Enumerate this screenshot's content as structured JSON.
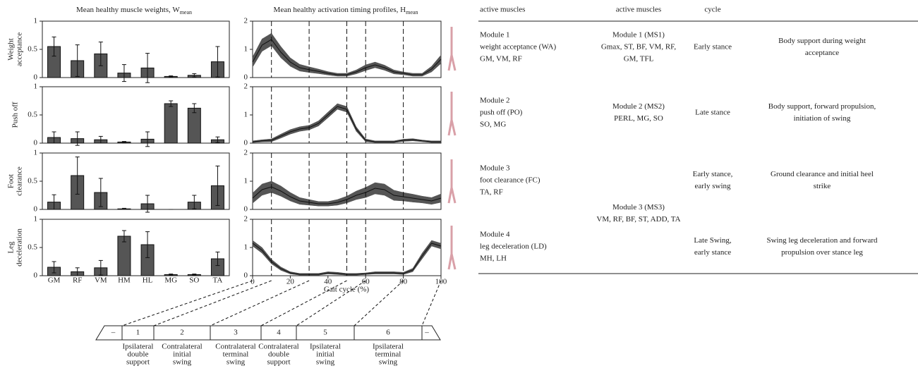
{
  "figure": {
    "weights_title": "Mean healthy muscle weights, W",
    "weights_title_sub": "mean",
    "timing_title": "Mean healthy activation timing profiles, H",
    "timing_title_sub": "mean",
    "timing_xlabel": "Gait cycle (%)"
  },
  "chart_data": [
    {
      "type": "bar",
      "ylabel": [
        "Weight",
        "acceptance"
      ],
      "values": [
        0.55,
        0.3,
        0.42,
        0.08,
        0.17,
        0.02,
        0.04,
        0.28
      ],
      "errors": [
        0.17,
        0.28,
        0.21,
        0.15,
        0.26,
        0.01,
        0.03,
        0.27
      ],
      "color": "#555555",
      "ylim": [
        0,
        1
      ],
      "yticks": [
        0,
        0.5,
        1
      ]
    },
    {
      "type": "bar",
      "ylabel": [
        "Push off"
      ],
      "values": [
        0.1,
        0.08,
        0.06,
        0.02,
        0.07,
        0.7,
        0.62,
        0.06
      ],
      "errors": [
        0.1,
        0.12,
        0.06,
        0.01,
        0.13,
        0.05,
        0.08,
        0.05
      ],
      "color": "#555555",
      "ylim": [
        0,
        1
      ],
      "yticks": [
        0,
        0.5,
        1
      ]
    },
    {
      "type": "bar",
      "ylabel": [
        "Foot",
        "clearance"
      ],
      "values": [
        0.13,
        0.6,
        0.3,
        0.01,
        0.1,
        0,
        0.13,
        0.42
      ],
      "errors": [
        0.13,
        0.33,
        0.25,
        0.01,
        0.15,
        0,
        0.12,
        0.35
      ],
      "color": "#555555",
      "ylim": [
        0,
        1
      ],
      "yticks": [
        0,
        0.5,
        1
      ]
    },
    {
      "type": "bar",
      "ylabel": [
        "Leg",
        "deceleration"
      ],
      "categories": [
        "GM",
        "RF",
        "VM",
        "HM",
        "HL",
        "MG",
        "SO",
        "TA"
      ],
      "values": [
        0.15,
        0.07,
        0.14,
        0.7,
        0.55,
        0.02,
        0.02,
        0.3
      ],
      "errors": [
        0.1,
        0.07,
        0.13,
        0.1,
        0.23,
        0.01,
        0.01,
        0.12
      ],
      "color": "#555555",
      "ylim": [
        0,
        1
      ],
      "yticks": [
        0,
        0.5,
        1
      ]
    },
    {
      "type": "band",
      "x": [
        0,
        5,
        10,
        15,
        20,
        25,
        30,
        35,
        40,
        45,
        50,
        55,
        60,
        65,
        70,
        75,
        80,
        85,
        90,
        95,
        100
      ],
      "values": [
        0.55,
        1.15,
        1.35,
        0.9,
        0.55,
        0.35,
        0.28,
        0.22,
        0.15,
        0.1,
        0.1,
        0.2,
        0.35,
        0.45,
        0.35,
        0.2,
        0.15,
        0.1,
        0.1,
        0.3,
        0.65
      ],
      "errors": [
        0.18,
        0.22,
        0.22,
        0.2,
        0.15,
        0.12,
        0.1,
        0.08,
        0.06,
        0.05,
        0.05,
        0.07,
        0.1,
        0.1,
        0.09,
        0.07,
        0.05,
        0.05,
        0.05,
        0.1,
        0.15
      ],
      "color": "#555555",
      "ylim": [
        0,
        2
      ],
      "yticks": [
        0,
        1,
        2
      ],
      "xlim": [
        0,
        100
      ],
      "vlines": [
        10,
        30,
        50,
        60,
        80
      ]
    },
    {
      "type": "band",
      "x": [
        0,
        5,
        10,
        15,
        20,
        25,
        30,
        35,
        40,
        45,
        50,
        55,
        60,
        65,
        70,
        75,
        80,
        85,
        90,
        95,
        100
      ],
      "values": [
        0.05,
        0.08,
        0.1,
        0.25,
        0.4,
        0.5,
        0.55,
        0.7,
        1.0,
        1.3,
        1.2,
        0.5,
        0.1,
        0.05,
        0.05,
        0.05,
        0.1,
        0.12,
        0.08,
        0.05,
        0.05
      ],
      "errors": [
        0.03,
        0.04,
        0.05,
        0.07,
        0.08,
        0.08,
        0.08,
        0.09,
        0.1,
        0.1,
        0.1,
        0.08,
        0.05,
        0.03,
        0.03,
        0.03,
        0.04,
        0.04,
        0.03,
        0.03,
        0.03
      ],
      "color": "#555555",
      "ylim": [
        0,
        2
      ],
      "yticks": [
        0,
        1,
        2
      ],
      "xlim": [
        0,
        100
      ],
      "vlines": [
        10,
        30,
        50,
        60,
        80
      ]
    },
    {
      "type": "band",
      "x": [
        0,
        5,
        10,
        15,
        20,
        25,
        30,
        35,
        40,
        45,
        50,
        55,
        60,
        65,
        70,
        75,
        80,
        85,
        90,
        95,
        100
      ],
      "values": [
        0.4,
        0.7,
        0.8,
        0.65,
        0.45,
        0.3,
        0.25,
        0.2,
        0.2,
        0.25,
        0.35,
        0.5,
        0.6,
        0.75,
        0.7,
        0.5,
        0.45,
        0.4,
        0.35,
        0.3,
        0.4
      ],
      "errors": [
        0.18,
        0.2,
        0.2,
        0.18,
        0.15,
        0.12,
        0.1,
        0.08,
        0.08,
        0.1,
        0.12,
        0.15,
        0.18,
        0.2,
        0.2,
        0.18,
        0.15,
        0.14,
        0.12,
        0.12,
        0.15
      ],
      "color": "#555555",
      "ylim": [
        0,
        2
      ],
      "yticks": [
        0,
        1,
        2
      ],
      "xlim": [
        0,
        100
      ],
      "vlines": [
        10,
        30,
        50,
        60,
        80
      ]
    },
    {
      "type": "band",
      "x": [
        0,
        5,
        10,
        15,
        20,
        25,
        30,
        35,
        40,
        45,
        50,
        55,
        60,
        65,
        70,
        75,
        80,
        85,
        90,
        95,
        100
      ],
      "values": [
        1.15,
        0.9,
        0.5,
        0.25,
        0.1,
        0.05,
        0.05,
        0.05,
        0.1,
        0.08,
        0.05,
        0.05,
        0.07,
        0.1,
        0.1,
        0.1,
        0.08,
        0.2,
        0.7,
        1.15,
        1.05
      ],
      "errors": [
        0.1,
        0.1,
        0.08,
        0.06,
        0.04,
        0.03,
        0.03,
        0.03,
        0.04,
        0.04,
        0.03,
        0.03,
        0.03,
        0.04,
        0.04,
        0.04,
        0.04,
        0.06,
        0.1,
        0.1,
        0.1
      ],
      "color": "#555555",
      "ylim": [
        0,
        2
      ],
      "yticks": [
        0,
        1,
        2
      ],
      "xlim": [
        0,
        100
      ],
      "xticks": [
        0,
        20,
        40,
        60,
        80,
        100
      ],
      "vlines": [
        10,
        30,
        50,
        60,
        80
      ]
    }
  ],
  "phases": {
    "cells": [
      "–",
      "1",
      "2",
      "3",
      "4",
      "5",
      "6",
      "–"
    ],
    "labels": [
      [
        "Ipsilateral",
        "double",
        "support"
      ],
      [
        "Contralateral",
        "initial",
        "swing"
      ],
      [
        "Contralateral",
        "terminal",
        "swing"
      ],
      [
        "Contralateral",
        "double",
        "support"
      ],
      [
        "Ipsilateral",
        "initial",
        "swing"
      ],
      [
        "Ipsilateral",
        "terminal",
        "swing"
      ]
    ]
  },
  "table": {
    "header": {
      "synergy": [
        "active muscles"
      ],
      "module": [
        "active muscles"
      ],
      "phase": [
        "cycle"
      ]
    },
    "rows": [
      {
        "synergy": [
          "Module 1",
          "weight acceptance (WA)",
          "GM, VM, RF"
        ],
        "module": [
          "Module 1 (MS1)",
          "Gmax, ST, BF, VM, RF,",
          "GM, TFL"
        ],
        "phase": [
          "Early stance"
        ],
        "function": [
          "Body support during weight",
          "acceptance"
        ]
      },
      {
        "synergy": [
          "Module 2",
          "push off (PO)",
          "SO, MG"
        ],
        "module": [
          "Module 2 (MS2)",
          "PERL, MG, SO"
        ],
        "phase": [
          "Late stance"
        ],
        "function": [
          "Body support, forward propulsion,",
          "initiation of swing"
        ]
      },
      {
        "synergy": [
          "Module 3",
          "foot clearance (FC)",
          "TA, RF"
        ],
        "module": [
          "Module 3 (MS3)",
          "VM, RF, BF, ST, ADD, TA"
        ],
        "phase": [
          "Early stance,",
          "early swing"
        ],
        "function": [
          "Ground clearance and initial heel",
          "strike"
        ]
      },
      {
        "synergy": [
          "Module 4",
          "leg deceleration (LD)",
          "MH, LH"
        ],
        "phase": [
          "Late Swing,",
          "early stance"
        ],
        "function": [
          "Swing leg deceleration and forward",
          "propulsion over stance leg"
        ]
      }
    ]
  }
}
